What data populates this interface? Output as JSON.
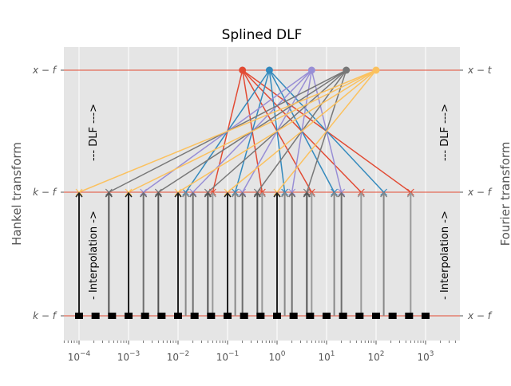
{
  "chart_data": {
    "type": "diagram",
    "title": "Splined DLF",
    "ylabel_left": "Hankel transform",
    "ylabel_right": "Fourier transform",
    "x_scale": "log",
    "xlim": [
      5e-05,
      5000
    ],
    "x_tick_labels": [
      {
        "base": "10",
        "exp": "−4"
      },
      {
        "base": "10",
        "exp": "−3"
      },
      {
        "base": "10",
        "exp": "−2"
      },
      {
        "base": "10",
        "exp": "−1"
      },
      {
        "base": "10",
        "exp": "0"
      },
      {
        "base": "10",
        "exp": "1"
      },
      {
        "base": "10",
        "exp": "2"
      },
      {
        "base": "10",
        "exp": "3"
      }
    ],
    "left_tick_labels": [
      "x − f",
      "k − f",
      "k − f"
    ],
    "right_tick_labels": [
      "x − t",
      "x − f",
      "x − f"
    ],
    "annotations": {
      "dlf_left": "--- DLF --->",
      "dlf_right": "--- DLF --->",
      "interp_left": "- Interpolation ->",
      "interp_right": "- Interpolation ->"
    },
    "level_line_color": "#E24A33",
    "dlf_base": [
      0.01,
      0.1,
      1,
      10,
      100
    ],
    "top_points": [
      {
        "x": 0.2,
        "color": "#E24A33",
        "arrow_shade": "#999999"
      },
      {
        "x": 0.7,
        "color": "#348ABD",
        "arrow_shade": "#888888"
      },
      {
        "x": 5,
        "color": "#988ED5",
        "arrow_shade": "#6e6e6e"
      },
      {
        "x": 25,
        "color": "#777777",
        "arrow_shade": "#555555"
      },
      {
        "x": 100,
        "color": "#FBC15E",
        "arrow_shade": "#222222"
      }
    ],
    "spline_points": {
      "start_exp": -4,
      "end_exp": 3,
      "per_decade": 3,
      "marker": "square",
      "color": "#000000"
    }
  }
}
